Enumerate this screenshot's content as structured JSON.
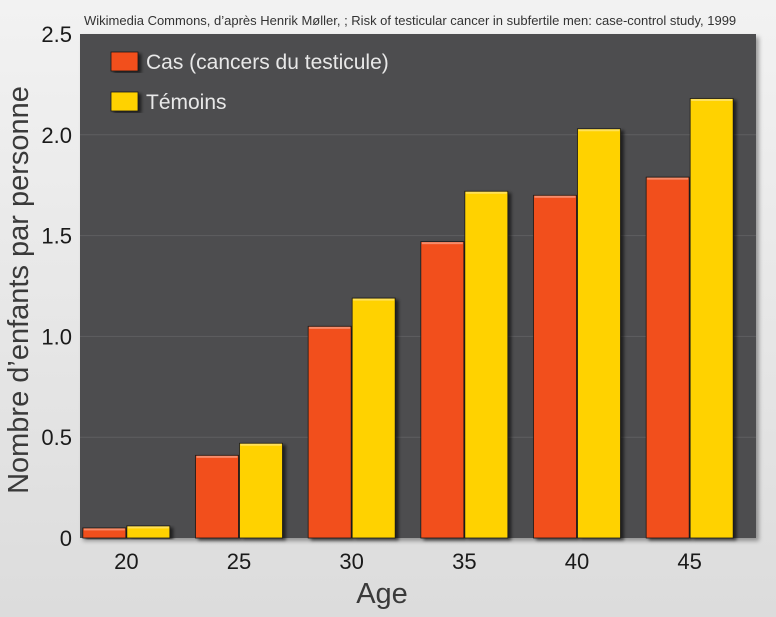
{
  "chart_data": {
    "type": "bar",
    "source": "Wikimedia Commons, d’après Henrik Møller, ; Risk of testicular cancer in subfertile men: case-control study, 1999",
    "xlabel": "Age",
    "ylabel": "Nombre d’enfants par personne",
    "categories": [
      "20",
      "25",
      "30",
      "35",
      "40",
      "45"
    ],
    "series": [
      {
        "name": "Cas (cancers du testicule)",
        "color": "#f2501a",
        "values": [
          0.05,
          0.41,
          1.05,
          1.47,
          1.7,
          1.79
        ]
      },
      {
        "name": "Témoins",
        "color": "#ffd200",
        "values": [
          0.06,
          0.47,
          1.19,
          1.72,
          2.03,
          2.18
        ]
      }
    ],
    "ylim": [
      0,
      2.5
    ],
    "yticks": [
      {
        "value": 0,
        "label": "0"
      },
      {
        "value": 0.5,
        "label": "0.5"
      },
      {
        "value": 1.0,
        "label": "1.0"
      },
      {
        "value": 1.5,
        "label": "1.5"
      },
      {
        "value": 2.0,
        "label": "2.0"
      },
      {
        "value": 2.5,
        "label": "2.5"
      }
    ],
    "grid": true,
    "legend_position": "top-left",
    "plot_background": "#4d4d4f"
  }
}
